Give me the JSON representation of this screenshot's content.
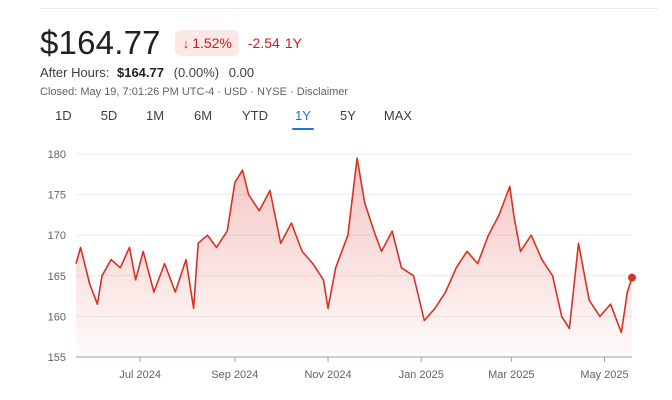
{
  "quote": {
    "price": "$164.77",
    "pct_change": "1.52%",
    "abs_change": "-2.54",
    "period": "1Y",
    "after_hours_label": "After Hours:",
    "after_hours_price": "$164.77",
    "after_hours_pct": "(0.00%)",
    "after_hours_change": "0.00",
    "closed_line": "Closed: May 19, 7:01:26 PM UTC-4 · USD · NYSE · ",
    "disclaimer": "Disclaimer",
    "down_color": "#c5221f"
  },
  "ranges": [
    "1D",
    "5D",
    "1M",
    "6M",
    "YTD",
    "1Y",
    "5Y",
    "MAX"
  ],
  "active_range": "1Y",
  "chart_data": {
    "type": "area",
    "ylim": [
      155,
      180
    ],
    "yticks": [
      180,
      175,
      170,
      165,
      160,
      155
    ],
    "xticks": [
      "Jul 2024",
      "Sep 2024",
      "Nov 2024",
      "Jan 2025",
      "Mar 2025",
      "May 2025"
    ],
    "xtick_dates": [
      "2024-07-01",
      "2024-09-01",
      "2024-11-01",
      "2025-01-01",
      "2025-03-01",
      "2025-05-01"
    ],
    "grid": true,
    "line_color": "#d93025",
    "series": [
      {
        "x": [
          "2024-05-20",
          "2024-05-23",
          "2024-05-29",
          "2024-06-03",
          "2024-06-06",
          "2024-06-12",
          "2024-06-18",
          "2024-06-24",
          "2024-06-28",
          "2024-07-03",
          "2024-07-10",
          "2024-07-17",
          "2024-07-24",
          "2024-07-31",
          "2024-08-05",
          "2024-08-08",
          "2024-08-14",
          "2024-08-20",
          "2024-08-27",
          "2024-09-01",
          "2024-09-06",
          "2024-09-10",
          "2024-09-17",
          "2024-09-24",
          "2024-10-01",
          "2024-10-08",
          "2024-10-15",
          "2024-10-22",
          "2024-10-29",
          "2024-11-01",
          "2024-11-06",
          "2024-11-14",
          "2024-11-20",
          "2024-11-25",
          "2024-12-02",
          "2024-12-06",
          "2024-12-13",
          "2024-12-19",
          "2024-12-27",
          "2025-01-03",
          "2025-01-10",
          "2025-01-17",
          "2025-01-24",
          "2025-01-31",
          "2025-02-07",
          "2025-02-14",
          "2025-02-21",
          "2025-02-28",
          "2025-03-03",
          "2025-03-07",
          "2025-03-14",
          "2025-03-21",
          "2025-03-28",
          "2025-04-03",
          "2025-04-08",
          "2025-04-14",
          "2025-04-21",
          "2025-04-28",
          "2025-05-05",
          "2025-05-12",
          "2025-05-16",
          "2025-05-19"
        ],
        "y": [
          166.5,
          168.5,
          164.0,
          161.5,
          165.0,
          167.0,
          166.0,
          168.5,
          164.5,
          168.0,
          163.0,
          166.5,
          163.0,
          167.0,
          161.0,
          169.0,
          170.0,
          168.5,
          170.5,
          176.5,
          178.0,
          175.0,
          173.0,
          175.5,
          169.0,
          171.5,
          168.0,
          166.5,
          164.5,
          161.0,
          166.0,
          170.0,
          179.5,
          174.0,
          170.0,
          168.0,
          170.5,
          166.0,
          165.0,
          159.5,
          161.0,
          163.0,
          166.0,
          168.0,
          166.5,
          170.0,
          172.5,
          176.0,
          172.0,
          168.0,
          170.0,
          167.0,
          165.0,
          160.0,
          158.5,
          169.0,
          162.0,
          160.0,
          161.5,
          158.0,
          163.0,
          164.77
        ]
      }
    ]
  }
}
